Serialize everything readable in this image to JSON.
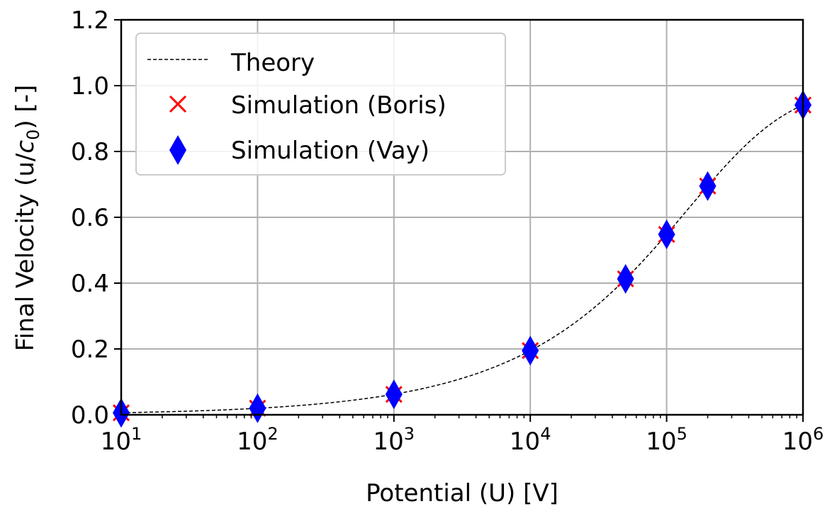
{
  "chart_data": {
    "type": "scatter",
    "xlabel": "Potential (U) [V]",
    "ylabel": {
      "before": "Final Velocity (u/",
      "italic": "c",
      "sub": "0",
      "after": ") [-]"
    },
    "xscale": "log",
    "xlim": [
      10,
      1000000
    ],
    "ylim": [
      0,
      1.2
    ],
    "grid": true,
    "legend_position": "top-left",
    "xticks": [
      {
        "value": 10,
        "base": "10",
        "exp": "1"
      },
      {
        "value": 100,
        "base": "10",
        "exp": "2"
      },
      {
        "value": 1000,
        "base": "10",
        "exp": "3"
      },
      {
        "value": 10000,
        "base": "10",
        "exp": "4"
      },
      {
        "value": 100000,
        "base": "10",
        "exp": "5"
      },
      {
        "value": 1000000,
        "base": "10",
        "exp": "6"
      }
    ],
    "yticks": [
      {
        "value": 0.0,
        "label": "0.0"
      },
      {
        "value": 0.2,
        "label": "0.2"
      },
      {
        "value": 0.4,
        "label": "0.4"
      },
      {
        "value": 0.6,
        "label": "0.6"
      },
      {
        "value": 0.8,
        "label": "0.8"
      },
      {
        "value": 1.0,
        "label": "1.0"
      },
      {
        "value": 1.2,
        "label": "1.2"
      }
    ],
    "series": [
      {
        "name": "Theory",
        "kind": "line",
        "style": "dashed",
        "color": "#000000",
        "formula": "relativistic electron velocity v/c = sqrt(1 - 1/(1 + U/511000)^2)"
      },
      {
        "name": "Simulation (Boris)",
        "kind": "marker",
        "marker": "x",
        "color": "#ff0000",
        "x": [
          10,
          100,
          1000,
          10000,
          50000,
          100000,
          200000,
          1000000
        ],
        "y": [
          0.006,
          0.02,
          0.062,
          0.195,
          0.413,
          0.548,
          0.695,
          0.941
        ]
      },
      {
        "name": "Simulation (Vay)",
        "kind": "marker",
        "marker": "thin_diamond",
        "color": "#0000ff",
        "x": [
          10,
          100,
          1000,
          10000,
          50000,
          100000,
          200000,
          1000000
        ],
        "y": [
          0.006,
          0.02,
          0.062,
          0.195,
          0.413,
          0.548,
          0.695,
          0.941
        ]
      }
    ]
  }
}
